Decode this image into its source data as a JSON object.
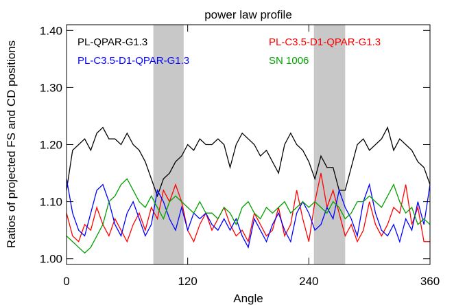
{
  "chart_data": {
    "type": "line",
    "title": "power law profile",
    "x_label": "Angle",
    "y_label": "Ratios of projected FS and CD positions",
    "x": [
      0,
      6,
      12,
      18,
      24,
      30,
      36,
      42,
      48,
      54,
      60,
      66,
      72,
      78,
      84,
      90,
      96,
      102,
      108,
      114,
      120,
      126,
      132,
      138,
      144,
      150,
      156,
      162,
      168,
      174,
      180,
      186,
      192,
      198,
      204,
      210,
      216,
      222,
      228,
      234,
      240,
      246,
      252,
      258,
      264,
      270,
      276,
      282,
      288,
      294,
      300,
      306,
      312,
      318,
      324,
      330,
      336,
      342,
      348,
      354,
      360
    ],
    "series": [
      {
        "name": "PL-QPAR-G1.3",
        "color": "#000000",
        "values": [
          1.12,
          1.19,
          1.2,
          1.21,
          1.19,
          1.22,
          1.23,
          1.21,
          1.21,
          1.2,
          1.22,
          1.2,
          1.19,
          1.17,
          1.14,
          1.11,
          1.14,
          1.15,
          1.17,
          1.18,
          1.2,
          1.19,
          1.21,
          1.2,
          1.2,
          1.21,
          1.2,
          1.16,
          1.2,
          1.22,
          1.21,
          1.2,
          1.18,
          1.19,
          1.17,
          1.15,
          1.2,
          1.22,
          1.2,
          1.19,
          1.17,
          1.14,
          1.18,
          1.16,
          1.16,
          1.12,
          1.12,
          1.16,
          1.2,
          1.21,
          1.19,
          1.2,
          1.21,
          1.23,
          1.19,
          1.21,
          1.2,
          1.19,
          1.17,
          1.16,
          1.13
        ]
      },
      {
        "name": "PL-C3.5-D1-QPAR-G1.3",
        "color": "#ff0000",
        "values": [
          1.08,
          1.04,
          1.03,
          1.06,
          1.05,
          1.09,
          1.06,
          1.04,
          1.07,
          1.05,
          1.03,
          1.06,
          1.08,
          1.05,
          1.09,
          1.07,
          1.12,
          1.1,
          1.13,
          1.1,
          1.05,
          1.03,
          1.06,
          1.08,
          1.05,
          1.07,
          1.09,
          1.06,
          1.04,
          1.05,
          1.03,
          1.08,
          1.06,
          1.04,
          1.05,
          1.09,
          1.04,
          1.06,
          1.12,
          1.07,
          1.03,
          1.1,
          1.15,
          1.09,
          1.12,
          1.08,
          1.04,
          1.06,
          1.03,
          1.05,
          1.1,
          1.06,
          1.04,
          1.06,
          1.09,
          1.08,
          1.13,
          1.06,
          1.09,
          1.03,
          1.03
        ]
      },
      {
        "name": "PL-C3.5-D1-QPAR-G1.3",
        "color": "#0000ff",
        "values": [
          1.14,
          1.08,
          1.05,
          1.04,
          1.08,
          1.12,
          1.13,
          1.1,
          1.06,
          1.04,
          1.08,
          1.1,
          1.07,
          1.04,
          1.06,
          1.12,
          1.1,
          1.07,
          1.05,
          1.09,
          1.05,
          1.08,
          1.07,
          1.08,
          1.06,
          1.05,
          1.07,
          1.05,
          1.07,
          1.04,
          1.02,
          1.07,
          1.05,
          1.03,
          1.06,
          1.08,
          1.05,
          1.03,
          1.08,
          1.1,
          1.08,
          1.05,
          1.06,
          1.09,
          1.07,
          1.12,
          1.09,
          1.07,
          1.04,
          1.1,
          1.13,
          1.08,
          1.05,
          1.04,
          1.06,
          1.03,
          1.07,
          1.05,
          1.1,
          1.06,
          1.13
        ]
      },
      {
        "name": "SN 1006",
        "color": "#00a000",
        "values": [
          1.04,
          1.03,
          1.02,
          1.01,
          1.02,
          1.04,
          1.06,
          1.1,
          1.11,
          1.13,
          1.14,
          1.12,
          1.1,
          1.09,
          1.11,
          1.09,
          1.07,
          1.1,
          1.11,
          1.1,
          1.09,
          1.08,
          1.1,
          1.08,
          1.08,
          1.07,
          1.09,
          1.08,
          1.06,
          1.09,
          1.1,
          1.08,
          1.07,
          1.09,
          1.08,
          1.09,
          1.1,
          1.08,
          1.09,
          1.1,
          1.09,
          1.1,
          1.09,
          1.08,
          1.1,
          1.09,
          1.07,
          1.08,
          1.1,
          1.1,
          1.11,
          1.1,
          1.09,
          1.11,
          1.13,
          1.1,
          1.08,
          1.09,
          1.06,
          1.07,
          1.06
        ]
      }
    ],
    "shaded_regions": [
      [
        86,
        116
      ],
      [
        245,
        276
      ]
    ],
    "shade_color": "#c8c8c8",
    "xlim": [
      0,
      360
    ],
    "xticks": [
      0,
      120,
      240,
      360
    ],
    "ylim": [
      0.99,
      1.41
    ],
    "yticks": [
      {
        "value": 1.0,
        "label": "1.00"
      },
      {
        "value": 1.1,
        "label": "1.10"
      },
      {
        "value": 1.2,
        "label": "1.20"
      },
      {
        "value": 1.3,
        "label": "1.30"
      },
      {
        "value": 1.4,
        "label": "1.40"
      }
    ]
  }
}
